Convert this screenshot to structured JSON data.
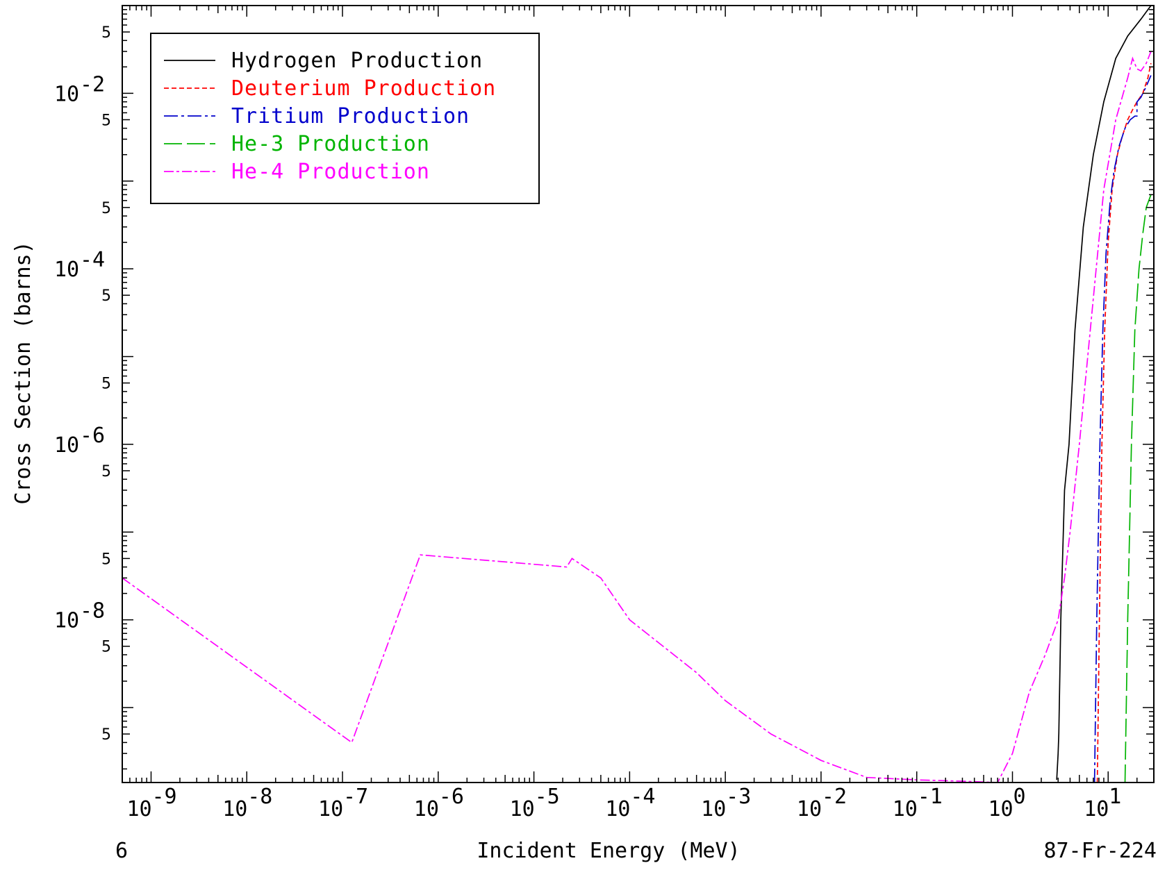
{
  "chart_data": {
    "type": "line",
    "xlabel": "Incident Energy (MeV)",
    "ylabel": "Cross Section (barns)",
    "x_scale": "log",
    "y_scale": "log",
    "xlim": [
      5e-10,
      30
    ],
    "ylim": [
      1.4e-10,
      0.1
    ],
    "x_ticks": [
      {
        "exp": "-9",
        "value": 1e-09
      },
      {
        "exp": "-8",
        "value": 1e-08
      },
      {
        "exp": "-7",
        "value": 1e-07
      },
      {
        "exp": "-6",
        "value": 1e-06
      },
      {
        "exp": "-5",
        "value": 1e-05
      },
      {
        "exp": "-4",
        "value": 0.0001
      },
      {
        "exp": "-3",
        "value": 0.001
      },
      {
        "exp": "-2",
        "value": 0.01
      },
      {
        "exp": "-1",
        "value": 0.1
      },
      {
        "exp": "0",
        "value": 1
      },
      {
        "exp": "1",
        "value": 10
      }
    ],
    "y_ticks": [
      {
        "exp": "-2",
        "value": 0.01
      },
      {
        "exp": "-4",
        "value": 0.0001
      },
      {
        "exp": "-6",
        "value": 1e-06
      },
      {
        "exp": "-8",
        "value": 1e-08
      }
    ],
    "minor_label": "5",
    "footer_left": "6",
    "footer_right": "87-Fr-224",
    "legend_position": "top-left",
    "grid": false,
    "series": [
      {
        "name": "Hydrogen Production",
        "color": "#000000",
        "dash": "",
        "x": [
          2.9,
          3.0,
          3.05,
          3.2,
          3.5,
          3.9,
          4.5,
          5.5,
          7,
          9,
          12,
          16,
          22,
          28
        ],
        "y": [
          1.5e-10,
          3e-10,
          5e-10,
          1e-08,
          3e-07,
          1e-06,
          2e-05,
          0.0003,
          0.002,
          0.008,
          0.025,
          0.045,
          0.07,
          0.1
        ]
      },
      {
        "name": "Deuterium Production",
        "color": "#ff0000",
        "dash": "7,4",
        "x": [
          7.7,
          8.1,
          8.6,
          9.2,
          10,
          11,
          12.5,
          14,
          16,
          18,
          20,
          23,
          26,
          28
        ],
        "y": [
          1.4e-10,
          1e-08,
          1e-06,
          2e-05,
          0.0002,
          0.0008,
          0.002,
          0.0032,
          0.005,
          0.0065,
          0.008,
          0.01,
          0.015,
          0.022
        ]
      },
      {
        "name": "Tritium Production",
        "color": "#0000cc",
        "dash": "20,5,4,5",
        "x": [
          7.2,
          7.6,
          8.2,
          8.8,
          9.5,
          10.5,
          11.5,
          13,
          15,
          17,
          19,
          20,
          20.01,
          22,
          25,
          28
        ],
        "y": [
          1.4e-10,
          1e-08,
          1e-06,
          2e-05,
          0.00015,
          0.0006,
          0.0013,
          0.0025,
          0.004,
          0.005,
          0.0055,
          0.0055,
          0.008,
          0.009,
          0.012,
          0.016
        ]
      },
      {
        "name": "He-3 Production",
        "color": "#00b400",
        "dash": "26,7",
        "x": [
          15,
          16,
          17.5,
          19,
          21,
          23,
          25,
          28
        ],
        "y": [
          1.4e-10,
          1e-08,
          1e-06,
          2e-05,
          0.0001,
          0.00025,
          0.0005,
          0.0007
        ]
      },
      {
        "name": "He-4 Production",
        "color": "#ff00ff",
        "dash": "14,4,4,4",
        "x": [
          5e-10,
          1.25e-07,
          6.5e-07,
          2.2e-05,
          2.5e-05,
          5e-05,
          0.0001,
          0.0002,
          0.0005,
          0.001,
          0.003,
          0.01,
          0.03,
          0.1,
          0.3,
          0.7,
          1.0,
          1.5,
          2.2,
          3.0,
          3.5,
          4.0,
          5.0,
          6.5,
          9,
          12,
          16,
          18,
          20,
          22,
          25,
          28
        ],
        "y": [
          3e-08,
          4e-10,
          5.5e-08,
          4e-08,
          5e-08,
          3e-08,
          1e-08,
          5.5e-09,
          2.5e-09,
          1.2e-09,
          5e-10,
          2.5e-10,
          1.6e-10,
          1.5e-10,
          1.45e-10,
          1.4e-10,
          3e-10,
          1.5e-09,
          4e-09,
          1e-08,
          3e-08,
          1e-07,
          1e-06,
          2e-05,
          0.0008,
          0.005,
          0.015,
          0.025,
          0.019,
          0.018,
          0.022,
          0.03
        ]
      }
    ]
  }
}
